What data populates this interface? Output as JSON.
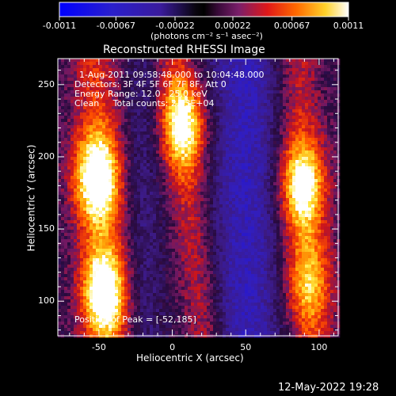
{
  "colorbar": {
    "ticks": [
      "-0.0011",
      "-0.00067",
      "-0.00022",
      "0.00022",
      "0.00067",
      "0.0011"
    ],
    "tick_values": [
      -0.0011,
      -0.00067,
      -0.00022,
      0.00022,
      0.00067,
      0.0011
    ],
    "range": [
      -0.0011,
      0.0011
    ],
    "unit_label": "(photons cm⁻² s⁻¹ asec⁻²)",
    "colormap": [
      "#0000ff",
      "#3a1b9c",
      "#000000",
      "#6a1e7a",
      "#ff0000",
      "#ff8c00",
      "#ffff3c",
      "#ffffff"
    ]
  },
  "chart_data": {
    "type": "heatmap",
    "title": "Reconstructed RHESSI Image",
    "xlabel": "Heliocentric X (arcsec)",
    "ylabel": "Heliocentric Y (arcsec)",
    "xlim": [
      -78,
      113
    ],
    "ylim": [
      76,
      268
    ],
    "xticks": [
      -50,
      0,
      50,
      100
    ],
    "yticks": [
      100,
      150,
      200,
      250
    ],
    "xtick_labels": [
      "-50",
      "0",
      "50",
      "100"
    ],
    "ytick_labels": [
      "100",
      "150",
      "200",
      "250"
    ],
    "annotations": [
      "1-Aug-2011 09:58:48.000 to 10:04:48.000",
      "Detectors: 3F 4F 5F 6F 7F 8F, Att 0",
      "Energy Range: 12.0 - 25.0 keV",
      "Clean     Total counts: 2.13E+04"
    ],
    "peak_label": "Position of Peak = [-52,185]",
    "peak_position": [
      -52,
      185
    ],
    "sources": [
      {
        "x": -52,
        "y": 185,
        "peak": 0.0011
      },
      {
        "x": -47,
        "y": 106,
        "peak": 0.00105
      },
      {
        "x": 8,
        "y": 222,
        "peak": 0.00095
      },
      {
        "x": 88,
        "y": 180,
        "peak": 0.00095
      },
      {
        "x": 92,
        "y": 113,
        "peak": 0.0006
      }
    ],
    "grid": false
  },
  "footer": {
    "timestamp": "12-May-2022 19:28"
  }
}
